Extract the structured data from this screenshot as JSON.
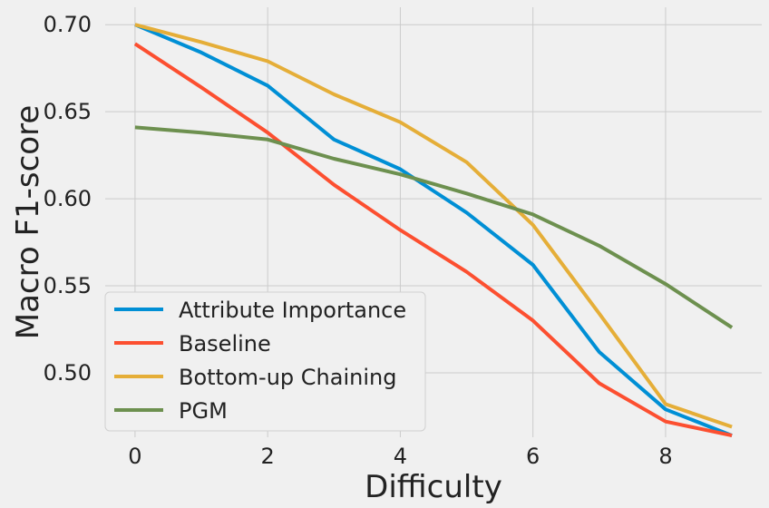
{
  "chart_data": {
    "type": "line",
    "title": "",
    "xlabel": "Difficulty",
    "ylabel": "Macro F1-score",
    "xlim": [
      -0.45,
      9.45
    ],
    "ylim": [
      0.463,
      0.71
    ],
    "grid": true,
    "legend_position": "lower-left",
    "x": [
      0,
      1,
      2,
      3,
      4,
      5,
      6,
      7,
      8,
      9
    ],
    "xticks": [
      {
        "value": 0,
        "label": "0"
      },
      {
        "value": 2,
        "label": "2"
      },
      {
        "value": 4,
        "label": "4"
      },
      {
        "value": 6,
        "label": "6"
      },
      {
        "value": 8,
        "label": "8"
      }
    ],
    "yticks": [
      {
        "value": 0.5,
        "label": "0.50"
      },
      {
        "value": 0.55,
        "label": "0.55"
      },
      {
        "value": 0.6,
        "label": "0.60"
      },
      {
        "value": 0.65,
        "label": "0.65"
      },
      {
        "value": 0.7,
        "label": "0.70"
      }
    ],
    "series": [
      {
        "name": "Attribute Importance",
        "color": "#008fd5",
        "values": [
          0.7,
          0.684,
          0.665,
          0.634,
          0.617,
          0.592,
          0.562,
          0.512,
          0.479,
          0.464
        ]
      },
      {
        "name": "Baseline",
        "color": "#fc4f30",
        "values": [
          0.689,
          0.664,
          0.638,
          0.608,
          0.582,
          0.558,
          0.53,
          0.494,
          0.472,
          0.464
        ]
      },
      {
        "name": "Bottom-up Chaining",
        "color": "#e5ae38",
        "values": [
          0.7,
          0.69,
          0.679,
          0.66,
          0.644,
          0.621,
          0.585,
          0.534,
          0.482,
          0.469
        ]
      },
      {
        "name": "PGM",
        "color": "#6d904f",
        "values": [
          0.641,
          0.638,
          0.634,
          0.623,
          0.614,
          0.603,
          0.591,
          0.573,
          0.551,
          0.526
        ]
      }
    ]
  }
}
